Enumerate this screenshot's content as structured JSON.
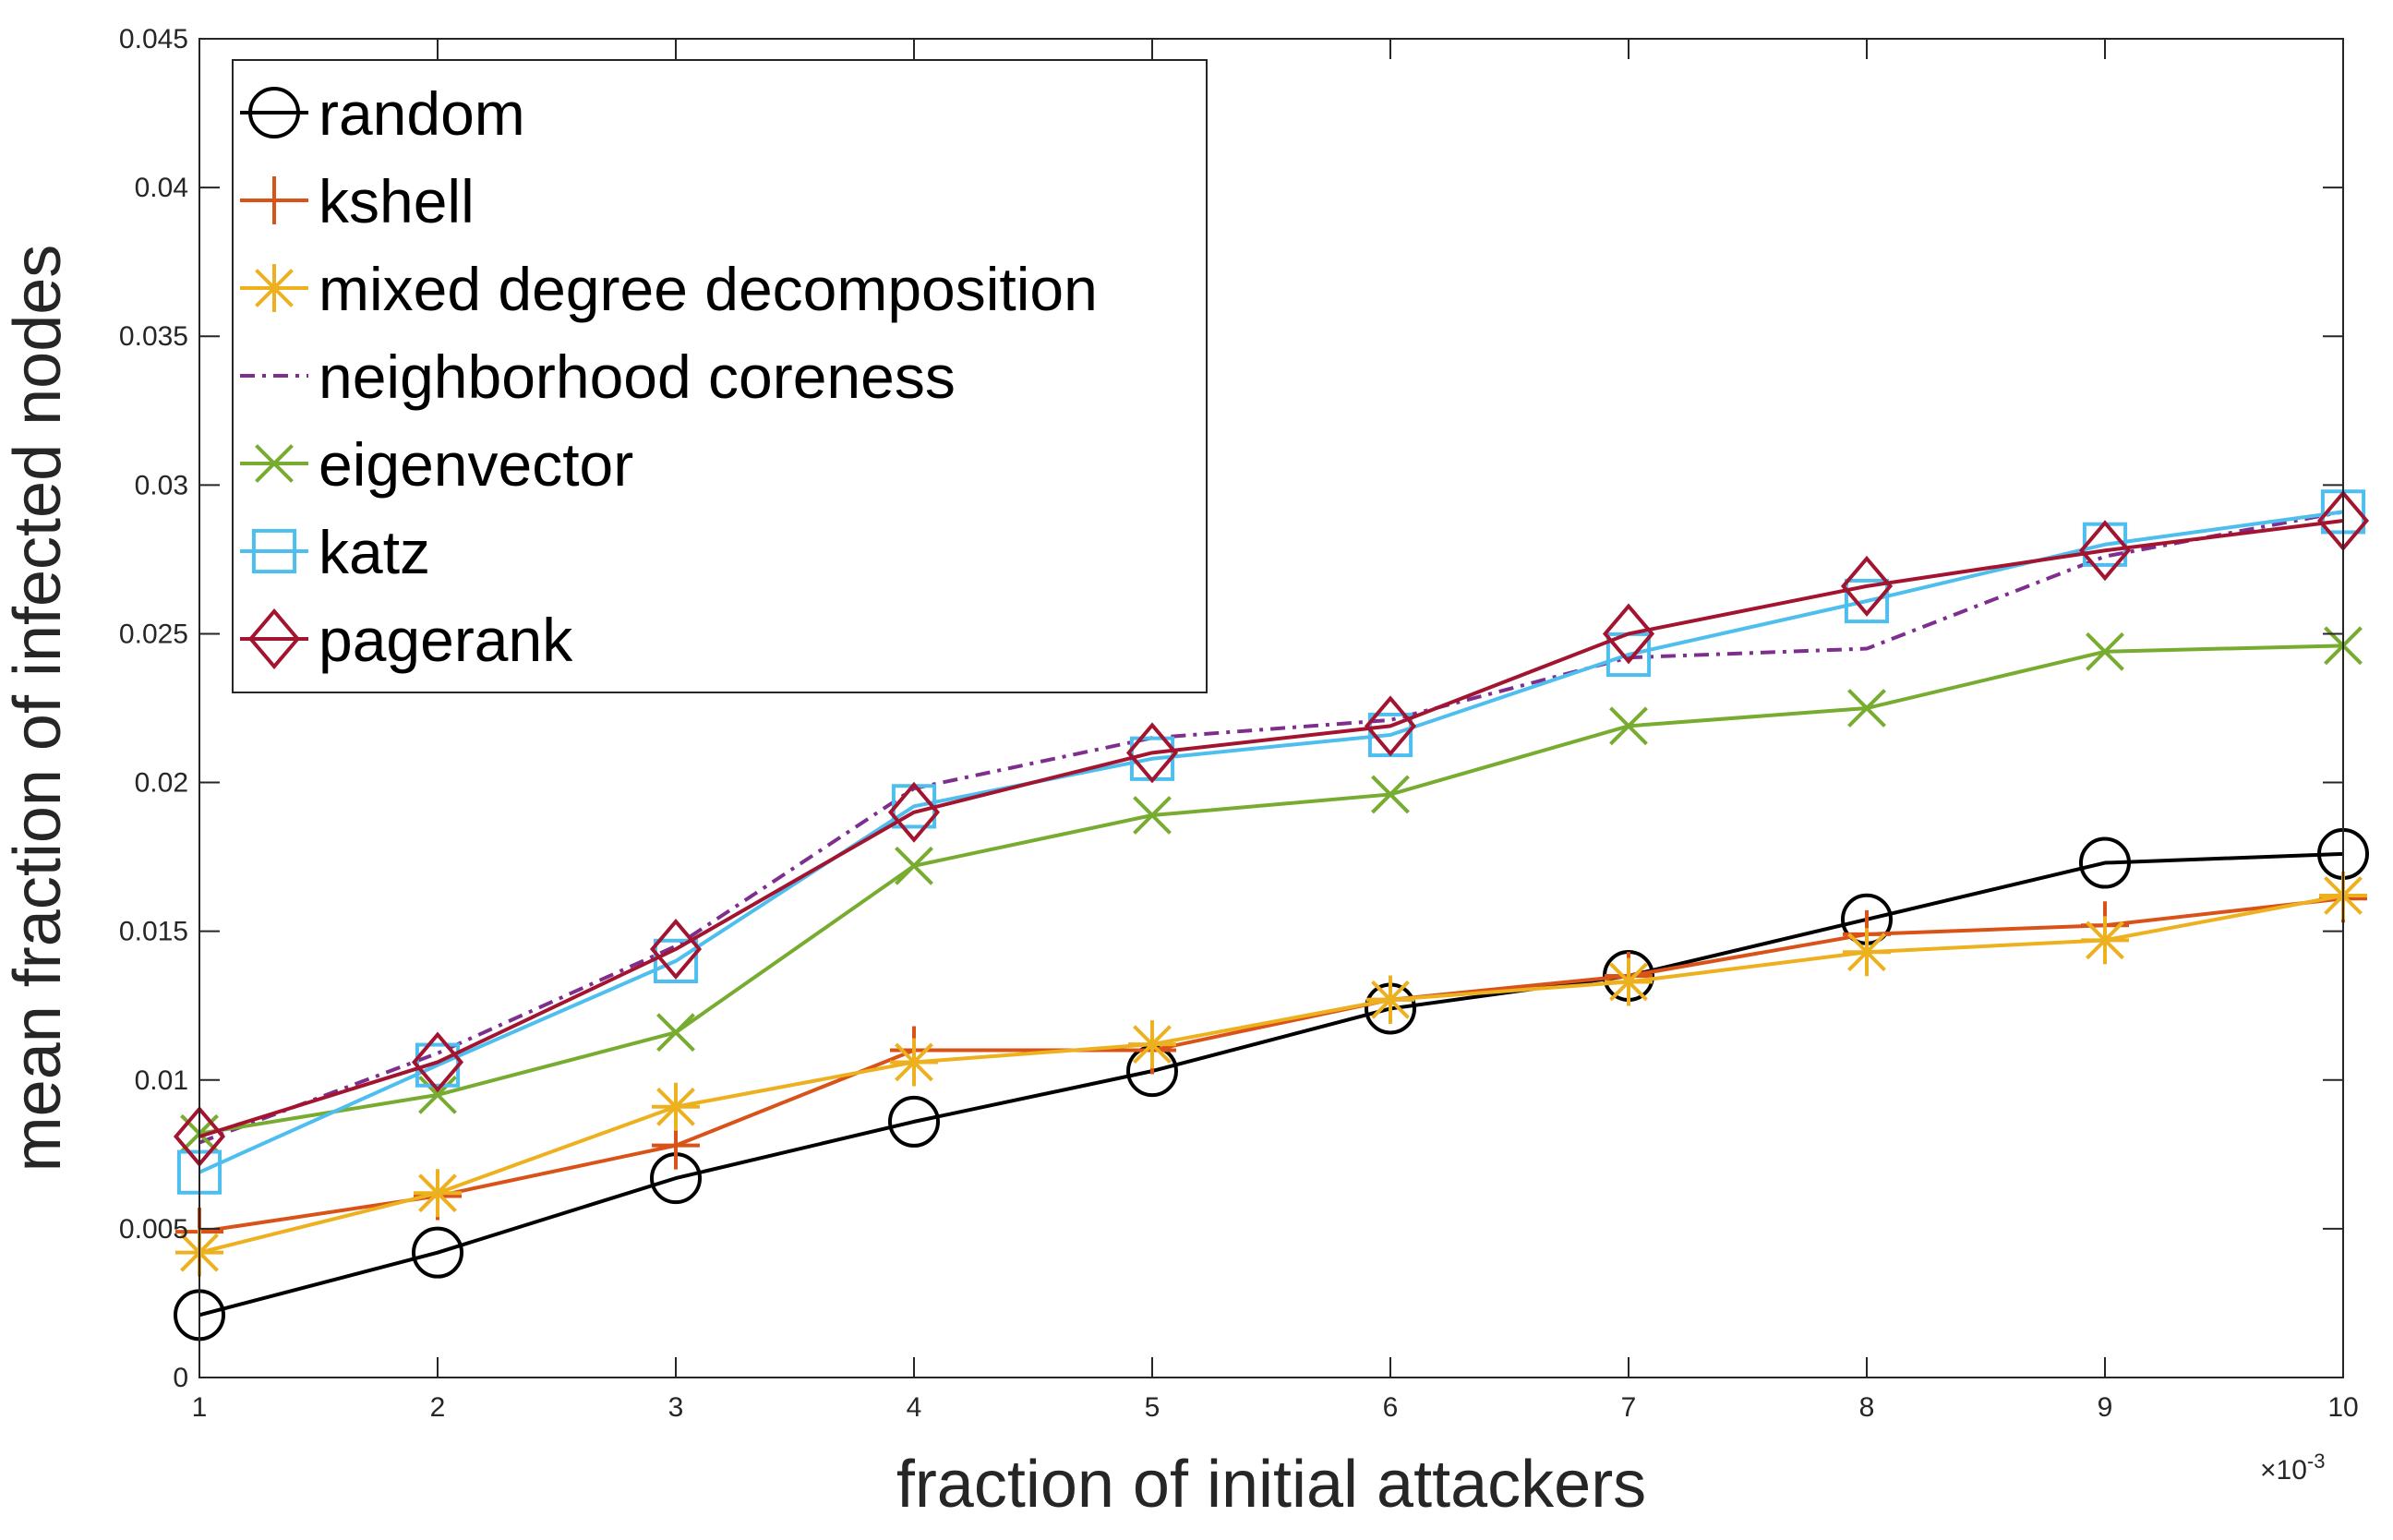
{
  "chart_data": {
    "type": "line",
    "xlabel": "fraction of initial attackers",
    "ylabel": "mean fraction of infected nodes",
    "x_exponent_label": "×10",
    "x_exponent_power": "-3",
    "x": [
      1,
      2,
      3,
      4,
      5,
      6,
      7,
      8,
      9,
      10
    ],
    "x_tick_labels": [
      "1",
      "2",
      "3",
      "4",
      "5",
      "6",
      "7",
      "8",
      "9",
      "10"
    ],
    "xlim": [
      1,
      10
    ],
    "ylim": [
      0,
      0.045
    ],
    "y_ticks": [
      0,
      0.005,
      0.01,
      0.015,
      0.02,
      0.025,
      0.03,
      0.035,
      0.04,
      0.045
    ],
    "y_tick_labels": [
      "0",
      "0.005",
      "0.01",
      "0.015",
      "0.02",
      "0.025",
      "0.03",
      "0.035",
      "0.04",
      "0.045"
    ],
    "grid": false,
    "legend_position": "top-left",
    "series": [
      {
        "name": "random",
        "color": "#000000",
        "marker": "circle",
        "dash": "",
        "values": [
          0.0021,
          0.0042,
          0.0067,
          0.0086,
          0.0103,
          0.0124,
          0.0135,
          0.0154,
          0.0173,
          0.0176
        ]
      },
      {
        "name": "kshell",
        "color": "#D95319",
        "marker": "plus",
        "dash": "",
        "values": [
          0.0049,
          0.0061,
          0.0078,
          0.011,
          0.011,
          0.0127,
          0.0135,
          0.0149,
          0.0152,
          0.0161
        ]
      },
      {
        "name": "mixed degree decomposition",
        "color": "#EDB120",
        "marker": "asterisk",
        "dash": "",
        "values": [
          0.0042,
          0.0062,
          0.0091,
          0.0106,
          0.0112,
          0.0127,
          0.0133,
          0.0143,
          0.0147,
          0.0162
        ]
      },
      {
        "name": "neighborhood coreness",
        "color": "#7E2F8E",
        "marker": "none",
        "dash": "16,8,4,8",
        "values": [
          0.0079,
          0.0109,
          0.0145,
          0.0198,
          0.0215,
          0.0221,
          0.0242,
          0.0245,
          0.0276,
          0.0291
        ]
      },
      {
        "name": "eigenvector",
        "color": "#77AC30",
        "marker": "x",
        "dash": "",
        "values": [
          0.0082,
          0.0095,
          0.0116,
          0.0172,
          0.0189,
          0.0196,
          0.0219,
          0.0225,
          0.0244,
          0.0246
        ]
      },
      {
        "name": "katz",
        "color": "#4DBEEE",
        "marker": "square",
        "dash": "",
        "values": [
          0.0069,
          0.0105,
          0.014,
          0.0192,
          0.0208,
          0.0216,
          0.0243,
          0.0261,
          0.028,
          0.0291
        ]
      },
      {
        "name": "pagerank",
        "color": "#A2142F",
        "marker": "diamond",
        "dash": "",
        "values": [
          0.0081,
          0.0106,
          0.0144,
          0.019,
          0.021,
          0.0219,
          0.025,
          0.0266,
          0.0278,
          0.0288
        ]
      }
    ]
  }
}
